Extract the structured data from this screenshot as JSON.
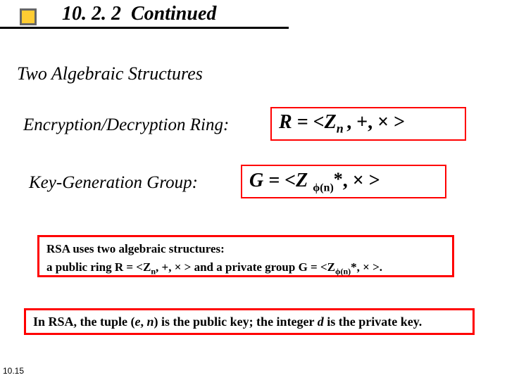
{
  "colors": {
    "border_red": "#ff0000",
    "bullet_fill": "#ffcc33",
    "bullet_border": "#666666",
    "text": "#000000",
    "underline": "#000000"
  },
  "header": {
    "number": "10. 2. 2",
    "title": "Continued"
  },
  "subtitle": "Two Algebraic Structures",
  "ring": {
    "label": "Encryption/Decryption Ring:",
    "prefix": "R = <Z",
    "sub": "n ",
    "suffix": ", +, × >"
  },
  "group": {
    "label": "Key-Generation Group:",
    "prefix": "G = <Z ",
    "phi": "ϕ",
    "sub_paren": "(n)",
    "star": "*",
    "suffix": ", × >"
  },
  "note1": {
    "line1": "RSA uses two algebraic structures:",
    "line2_prefix": "a public ring R = <Z",
    "line2_sub1": "n",
    "line2_mid": ", +, × > and a private group G = <Z",
    "line2_phi": "ϕ",
    "line2_sub2": "(n)",
    "line2_suffix": "*, × >."
  },
  "note2": {
    "p1": "In RSA, the tuple (",
    "e": "e",
    "p2": ", ",
    "n": "n",
    "p3": ") is the public key; the integer ",
    "d": "d",
    "p4": " is the private key."
  },
  "page_num": "10.15"
}
